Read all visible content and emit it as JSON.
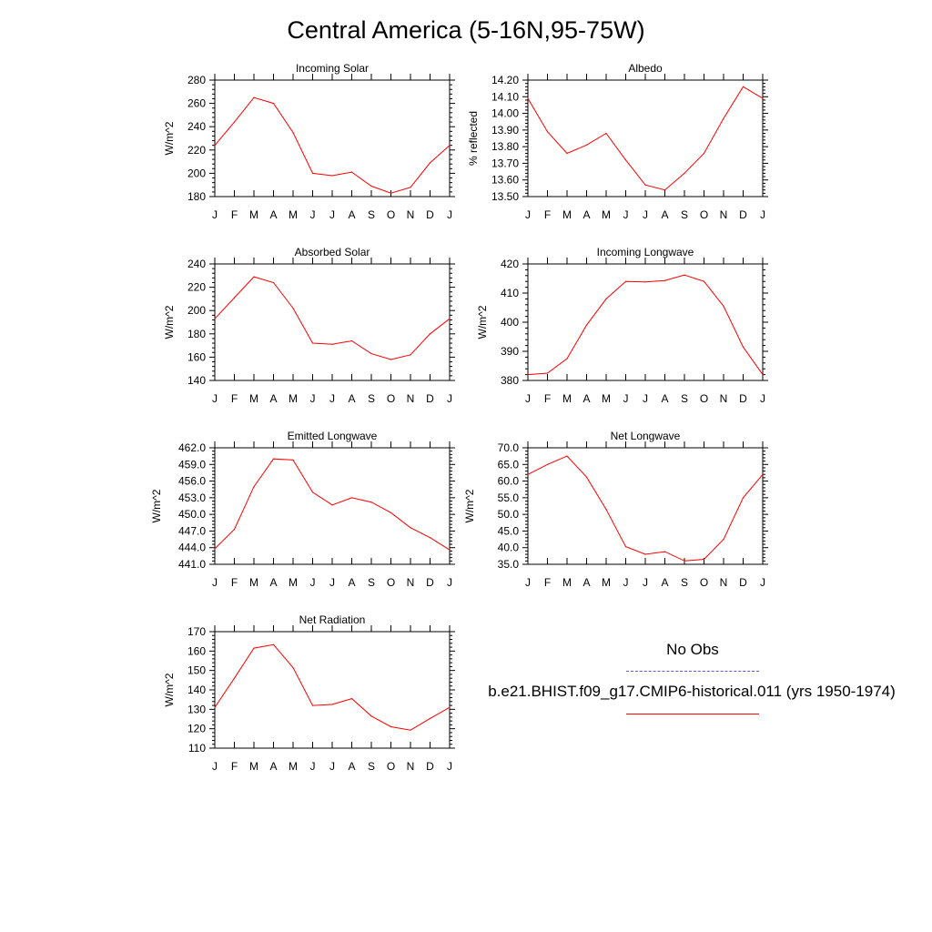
{
  "page": {
    "title": "Central America (5-16N,95-75W)"
  },
  "legend": {
    "obs_label": "No Obs",
    "obs_color": "#5a5adc",
    "model_label": "b.e21.BHIST.f09_g17.CMIP6-historical.011 (yrs 1950-1974)",
    "model_color": "#ff0000"
  },
  "chart_data": [
    {
      "type": "line",
      "title": "Incoming Solar",
      "ylabel": "W/m^2",
      "xlabel": "",
      "categories": [
        "J",
        "F",
        "M",
        "A",
        "M",
        "J",
        "J",
        "A",
        "S",
        "O",
        "N",
        "D",
        "J"
      ],
      "ylim": [
        180,
        280
      ],
      "yticks": [
        180,
        200,
        220,
        240,
        260,
        280
      ],
      "ytick_labels": [
        "180",
        "200",
        "220",
        "240",
        "260",
        "280"
      ],
      "series": [
        {
          "values": [
            224,
            244,
            265,
            260,
            235,
            200,
            198,
            201,
            189,
            183,
            188,
            209,
            224
          ],
          "color": "#ff0000"
        }
      ]
    },
    {
      "type": "line",
      "title": "Albedo",
      "ylabel": "% reflected",
      "xlabel": "",
      "categories": [
        "J",
        "F",
        "M",
        "A",
        "M",
        "J",
        "J",
        "A",
        "S",
        "O",
        "N",
        "D",
        "J"
      ],
      "ylim": [
        13.5,
        14.2
      ],
      "yticks": [
        13.5,
        13.6,
        13.7,
        13.8,
        13.9,
        14.0,
        14.1,
        14.2
      ],
      "ytick_labels": [
        "13.50",
        "13.60",
        "13.70",
        "13.80",
        "13.90",
        "14.00",
        "14.10",
        "14.20"
      ],
      "series": [
        {
          "values": [
            14.09,
            13.89,
            13.76,
            13.81,
            13.88,
            13.72,
            13.57,
            13.54,
            13.64,
            13.76,
            13.97,
            14.16,
            14.09
          ],
          "color": "#ff0000"
        }
      ]
    },
    {
      "type": "line",
      "title": "Absorbed Solar",
      "ylabel": "W/m^2",
      "xlabel": "",
      "categories": [
        "J",
        "F",
        "M",
        "A",
        "M",
        "J",
        "J",
        "A",
        "S",
        "O",
        "N",
        "D",
        "J"
      ],
      "ylim": [
        140,
        240
      ],
      "yticks": [
        140,
        160,
        180,
        200,
        220,
        240
      ],
      "ytick_labels": [
        "140",
        "160",
        "180",
        "200",
        "220",
        "240"
      ],
      "series": [
        {
          "values": [
            193,
            211,
            229,
            224,
            202,
            172,
            171,
            174,
            163,
            158,
            162,
            180,
            193
          ],
          "color": "#ff0000"
        }
      ]
    },
    {
      "type": "line",
      "title": "Incoming Longwave",
      "ylabel": "W/m^2",
      "xlabel": "",
      "categories": [
        "J",
        "F",
        "M",
        "A",
        "M",
        "J",
        "J",
        "A",
        "S",
        "O",
        "N",
        "D",
        "J"
      ],
      "ylim": [
        380,
        420
      ],
      "yticks": [
        380,
        390,
        400,
        410,
        420
      ],
      "ytick_labels": [
        "380",
        "390",
        "400",
        "410",
        "420"
      ],
      "series": [
        {
          "values": [
            382,
            382.5,
            387.5,
            399,
            408,
            414,
            413.8,
            414.3,
            416.2,
            414,
            405.5,
            391.5,
            382
          ],
          "color": "#ff0000"
        }
      ]
    },
    {
      "type": "line",
      "title": "Emitted Longwave",
      "ylabel": "W/m^2",
      "xlabel": "",
      "categories": [
        "J",
        "F",
        "M",
        "A",
        "M",
        "J",
        "J",
        "A",
        "S",
        "O",
        "N",
        "D",
        "J"
      ],
      "ylim": [
        441,
        462
      ],
      "yticks": [
        441,
        444,
        447,
        450,
        453,
        456,
        459,
        462
      ],
      "ytick_labels": [
        "441.0",
        "444.0",
        "447.0",
        "450.0",
        "453.0",
        "456.0",
        "459.0",
        "462.0"
      ],
      "series": [
        {
          "values": [
            443.8,
            447.3,
            455.0,
            460.0,
            459.8,
            454.0,
            451.7,
            453.0,
            452.2,
            450.3,
            447.6,
            445.8,
            443.6
          ],
          "color": "#ff0000"
        }
      ]
    },
    {
      "type": "line",
      "title": "Net Longwave",
      "ylabel": "W/m^2",
      "xlabel": "",
      "categories": [
        "J",
        "F",
        "M",
        "A",
        "M",
        "J",
        "J",
        "A",
        "S",
        "O",
        "N",
        "D",
        "J"
      ],
      "ylim": [
        35,
        70
      ],
      "yticks": [
        35,
        40,
        45,
        50,
        55,
        60,
        65,
        70
      ],
      "ytick_labels": [
        "35.0",
        "40.0",
        "45.0",
        "50.0",
        "55.0",
        "60.0",
        "65.0",
        "70.0"
      ],
      "series": [
        {
          "values": [
            62.0,
            65.0,
            67.5,
            61.2,
            51.5,
            40.3,
            38.0,
            38.8,
            36.0,
            36.5,
            42.5,
            55.0,
            62.0
          ],
          "color": "#ff0000"
        }
      ]
    },
    {
      "type": "line",
      "title": "Net Radiation",
      "ylabel": "W/m^2",
      "xlabel": "",
      "categories": [
        "J",
        "F",
        "M",
        "A",
        "M",
        "J",
        "J",
        "A",
        "S",
        "O",
        "N",
        "D",
        "J"
      ],
      "ylim": [
        110,
        170
      ],
      "yticks": [
        110,
        120,
        130,
        140,
        150,
        160,
        170
      ],
      "ytick_labels": [
        "110",
        "120",
        "130",
        "140",
        "150",
        "160",
        "170"
      ],
      "series": [
        {
          "values": [
            131,
            146,
            161.5,
            163.3,
            151.5,
            132,
            132.5,
            135.5,
            126.5,
            121,
            119.3,
            125.3,
            131
          ],
          "color": "#ff0000"
        }
      ]
    }
  ]
}
